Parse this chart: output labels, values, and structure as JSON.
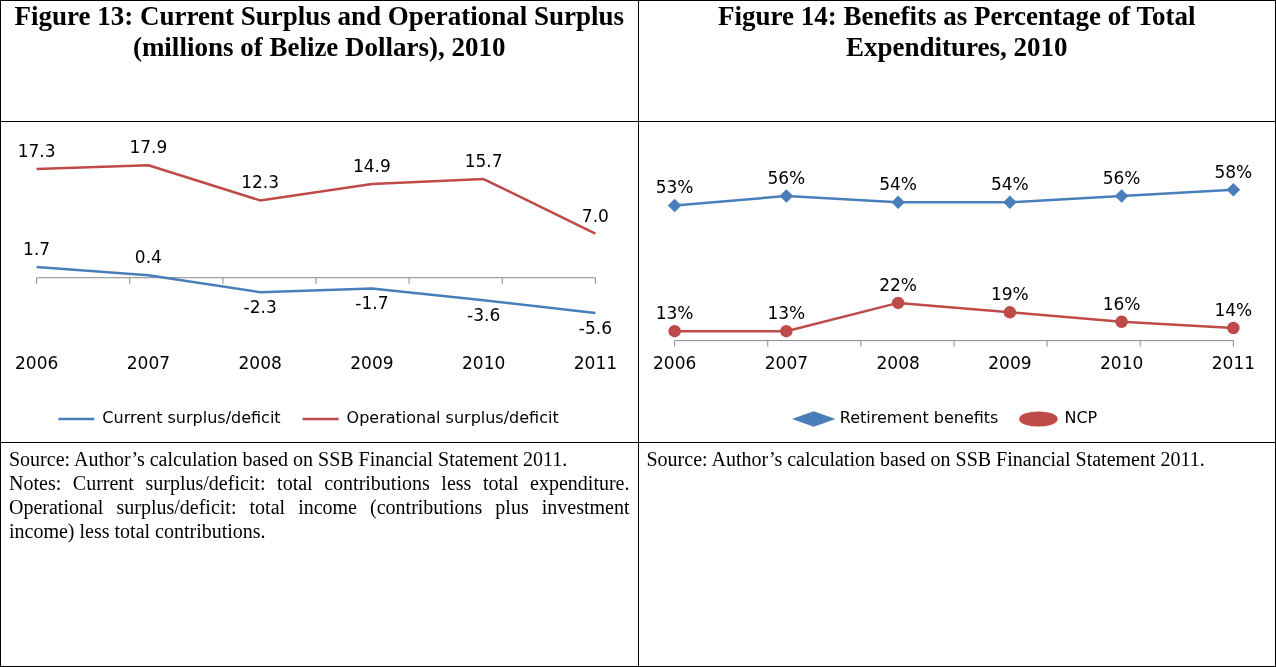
{
  "chart_data": [
    {
      "type": "line",
      "title": "Figure 13: Current Surplus and Operational Surplus (millions of Belize Dollars), 2010",
      "categories": [
        "2006",
        "2007",
        "2008",
        "2009",
        "2010",
        "2011"
      ],
      "series": [
        {
          "name": "Current surplus/deficit",
          "color": "#4a7ebb",
          "values": [
            1.7,
            0.4,
            -2.3,
            -1.7,
            -3.6,
            -5.6
          ],
          "value_labels": [
            "1.7",
            "0.4",
            "-2.3",
            "-1.7",
            "-3.6",
            "-5.6"
          ]
        },
        {
          "name": "Operational surplus/deficit",
          "color": "#be4b48",
          "values": [
            17.3,
            17.9,
            12.3,
            14.9,
            15.7,
            7.0
          ],
          "value_labels": [
            "17.3",
            "17.9",
            "12.3",
            "14.9",
            "15.7",
            "7.0"
          ]
        }
      ],
      "tick_labels": "x",
      "marker": "none",
      "legend": "bottom",
      "grid": false,
      "annotations": [
        "Source: Author’s calculation based on SSB Financial Statement 2011.",
        "Notes: Current surplus/deficit: total contributions less total expenditure. Operational surplus/deficit: total income (contributions plus investment income) less total contributions."
      ]
    },
    {
      "type": "line",
      "title": "Figure 14: Benefits as Percentage of Total Expenditures, 2010",
      "categories": [
        "2006",
        "2007",
        "2008",
        "2009",
        "2010",
        "2011"
      ],
      "series": [
        {
          "name": "Retirement benefits",
          "color": "#4a7ebb",
          "marker": "diamond",
          "values": [
            53,
            56,
            54,
            54,
            56,
            58
          ],
          "value_labels": [
            "53%",
            "56%",
            "54%",
            "54%",
            "56%",
            "58%"
          ]
        },
        {
          "name": "NCP",
          "color": "#be4b48",
          "marker": "circle",
          "values": [
            13,
            13,
            22,
            19,
            16,
            14
          ],
          "value_labels": [
            "13%",
            "13%",
            "22%",
            "19%",
            "16%",
            "14%"
          ]
        }
      ],
      "tick_labels": "x",
      "legend": "bottom",
      "grid": false,
      "annotations": [
        "Source: Author’s calculation based on SSB Financial Statement 2011."
      ]
    }
  ]
}
